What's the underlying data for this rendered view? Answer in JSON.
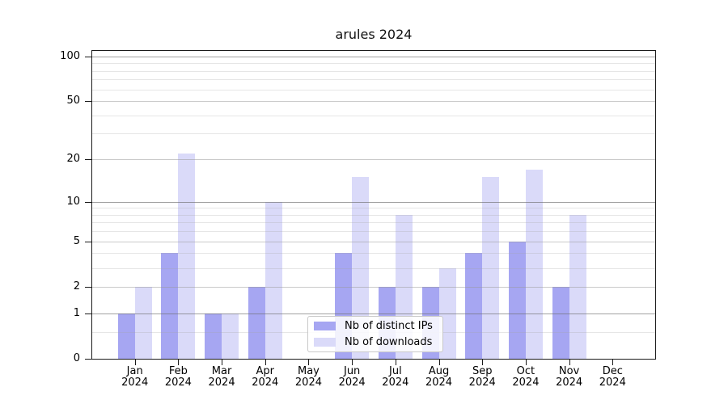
{
  "title": "arules 2024",
  "colors": {
    "distinct_ips_bar": "#a6a6f2",
    "downloads_bar": "#dadaf9",
    "grid_strong": "rgba(110,110,110,0.65)",
    "grid_medium": "rgba(150,150,150,0.5)",
    "grid_faint": "rgba(165,165,165,0.28)",
    "spine": "#1a1a1a"
  },
  "chart_data": {
    "type": "bar",
    "title": "arules 2024",
    "categories": [
      "Jan 2024",
      "Feb 2024",
      "Mar 2024",
      "Apr 2024",
      "May 2024",
      "Jun 2024",
      "Jul 2024",
      "Aug 2024",
      "Sep 2024",
      "Oct 2024",
      "Nov 2024",
      "Dec 2024"
    ],
    "x_tick_months": [
      "Jan",
      "Feb",
      "Mar",
      "Apr",
      "May",
      "Jun",
      "Jul",
      "Aug",
      "Sep",
      "Oct",
      "Nov",
      "Dec"
    ],
    "x_tick_year": "2024",
    "series": [
      {
        "name": "Nb of distinct IPs",
        "color": "#a6a6f2",
        "values": [
          1,
          4,
          1,
          2,
          0,
          4,
          2,
          2,
          4,
          5,
          2,
          0
        ]
      },
      {
        "name": "Nb of downloads",
        "color": "#dadaf9",
        "values": [
          2,
          22,
          1,
          10,
          0,
          15,
          8,
          3,
          15,
          17,
          8,
          0
        ]
      }
    ],
    "xlabel": "",
    "ylabel": "",
    "yscale": "log1p",
    "ylim": [
      0,
      110
    ],
    "yticks": [
      0,
      1,
      2,
      5,
      10,
      20,
      50,
      100
    ],
    "grid": {
      "strong": [
        1,
        10,
        100
      ],
      "medium": [
        2,
        5,
        20,
        50
      ],
      "faint": [
        0.5,
        3,
        4,
        6,
        7,
        8,
        9,
        30,
        40,
        60,
        70,
        80,
        90
      ]
    },
    "legend_position": "inside-bottom-center",
    "legend_entries": [
      "Nb of distinct IPs",
      "Nb of downloads"
    ]
  }
}
